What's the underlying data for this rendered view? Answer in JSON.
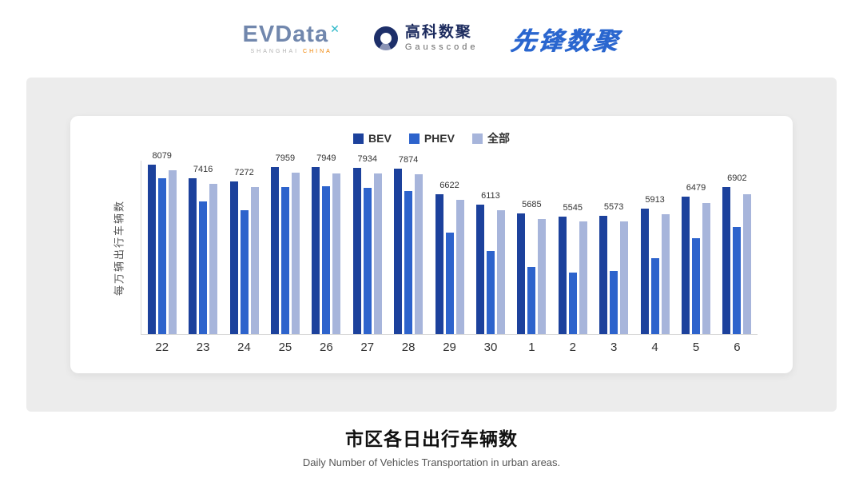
{
  "header": {
    "evdata": {
      "wordmark": "EVData",
      "mark": "✕",
      "tagline_left": "SHANGHAI",
      "tagline_right": "CHINA"
    },
    "gausscode": {
      "name_cn": "高科数聚",
      "name_en": "Gausscode"
    },
    "xianfeng": {
      "name": "先锋数聚"
    }
  },
  "chart_data": {
    "type": "bar",
    "title": "市区各日出行车辆数",
    "subtitle": "Daily Number of Vehicles Transportation in urban areas.",
    "ylabel": "每万辆出行车辆数",
    "xlabel": "",
    "ylim": [
      0,
      8600
    ],
    "grid": false,
    "legend_position": "top",
    "categories": [
      "22",
      "23",
      "24",
      "25",
      "26",
      "27",
      "28",
      "29",
      "30",
      "1",
      "2",
      "3",
      "4",
      "5",
      "6"
    ],
    "series": [
      {
        "name": "BEV",
        "color": "#1c419c",
        "estimated": true,
        "values": [
          8350,
          7700,
          7550,
          8250,
          8230,
          8220,
          8150,
          6900,
          6400,
          5950,
          5800,
          5820,
          6180,
          6800,
          7250
        ]
      },
      {
        "name": "PHEV",
        "color": "#2d63cc",
        "estimated": true,
        "values": [
          7700,
          6550,
          6100,
          7250,
          7300,
          7200,
          7050,
          5000,
          4100,
          3300,
          3050,
          3120,
          3750,
          4750,
          5300
        ]
      },
      {
        "name": "全部",
        "color": "#a7b5db",
        "data_labels": true,
        "values": [
          8079,
          7416,
          7272,
          7959,
          7949,
          7934,
          7874,
          6622,
          6113,
          5685,
          5545,
          5573,
          5913,
          6479,
          6902
        ]
      }
    ]
  },
  "footer": {
    "title": "市区各日出行车辆数",
    "subtitle": "Daily Number of Vehicles Transportation in urban areas."
  }
}
